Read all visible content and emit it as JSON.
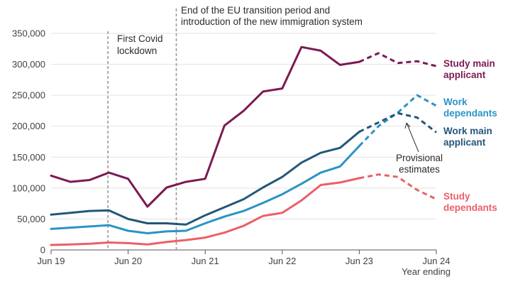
{
  "chart_data": {
    "type": "line",
    "y_ticks": [
      "0",
      "50,000",
      "100,000",
      "150,000",
      "200,000",
      "250,000",
      "300,000",
      "350,000"
    ],
    "ylim": [
      0,
      350000
    ],
    "x_ticks": [
      {
        "label": "Jun 19",
        "t": 0
      },
      {
        "label": "Jun 20",
        "t": 4
      },
      {
        "label": "Jun 21",
        "t": 8
      },
      {
        "label": "Jun 22",
        "t": 12
      },
      {
        "label": "Jun 23",
        "t": 16
      },
      {
        "label": "Jun 24",
        "t": 20
      }
    ],
    "x_unit_label": "Year ending",
    "grid": "horizontal",
    "vlines": [
      {
        "t": 2.95,
        "text": [
          "First Covid",
          "lockdown"
        ]
      },
      {
        "t": 6.5,
        "text": [
          "End of the EU transition period and",
          "introduction of the new immigration system"
        ]
      }
    ],
    "provisional_from_t": 16,
    "provisional_note": [
      "Provisional",
      "estimates"
    ],
    "series": [
      {
        "name": "Study main applicant",
        "label_lines": [
          "Study main",
          "applicant"
        ],
        "color": "#7b1a54",
        "t": [
          0,
          1,
          2,
          3,
          4,
          5,
          6,
          7,
          8,
          9,
          10,
          11,
          12,
          13,
          14,
          15,
          16,
          17,
          18,
          19,
          20
        ],
        "values": [
          120000,
          110000,
          113000,
          125000,
          115000,
          70000,
          101000,
          110000,
          115000,
          201000,
          225000,
          256000,
          261000,
          328000,
          322000,
          299000,
          304000,
          318000,
          302000,
          305000,
          297000
        ]
      },
      {
        "name": "Work dependants",
        "label_lines": [
          "Work",
          "dependants"
        ],
        "color": "#2994c5",
        "t": [
          0,
          1,
          2,
          3,
          4,
          5,
          6,
          7,
          8,
          9,
          10,
          11,
          12,
          13,
          14,
          15,
          16,
          17,
          18,
          19,
          20
        ],
        "values": [
          34000,
          36000,
          38000,
          40000,
          31000,
          27000,
          30000,
          31000,
          43000,
          54000,
          63000,
          76000,
          90000,
          107000,
          125000,
          135000,
          168000,
          200000,
          222000,
          250000,
          233000
        ]
      },
      {
        "name": "Work main applicant",
        "label_lines": [
          "Work main",
          "applicant"
        ],
        "color": "#22577a",
        "t": [
          0,
          1,
          2,
          3,
          4,
          5,
          6,
          7,
          8,
          9,
          10,
          11,
          12,
          13,
          14,
          15,
          16,
          17,
          18,
          19,
          20
        ],
        "values": [
          57000,
          60000,
          63000,
          64000,
          50000,
          43000,
          43000,
          41000,
          56000,
          69000,
          82000,
          101000,
          118000,
          141000,
          157000,
          165000,
          191000,
          206000,
          221000,
          214000,
          190000
        ]
      },
      {
        "name": "Study dependants",
        "label_lines": [
          "Study",
          "dependants"
        ],
        "color": "#ec5f67",
        "t": [
          0,
          1,
          2,
          3,
          4,
          5,
          6,
          7,
          8,
          9,
          10,
          11,
          12,
          13,
          14,
          15,
          16,
          17,
          18,
          19,
          20
        ],
        "values": [
          8000,
          9000,
          10000,
          12000,
          11000,
          9000,
          13000,
          16000,
          20000,
          28000,
          39000,
          55000,
          60000,
          80000,
          105000,
          109000,
          116000,
          122000,
          118000,
          97000,
          82000
        ]
      }
    ]
  }
}
